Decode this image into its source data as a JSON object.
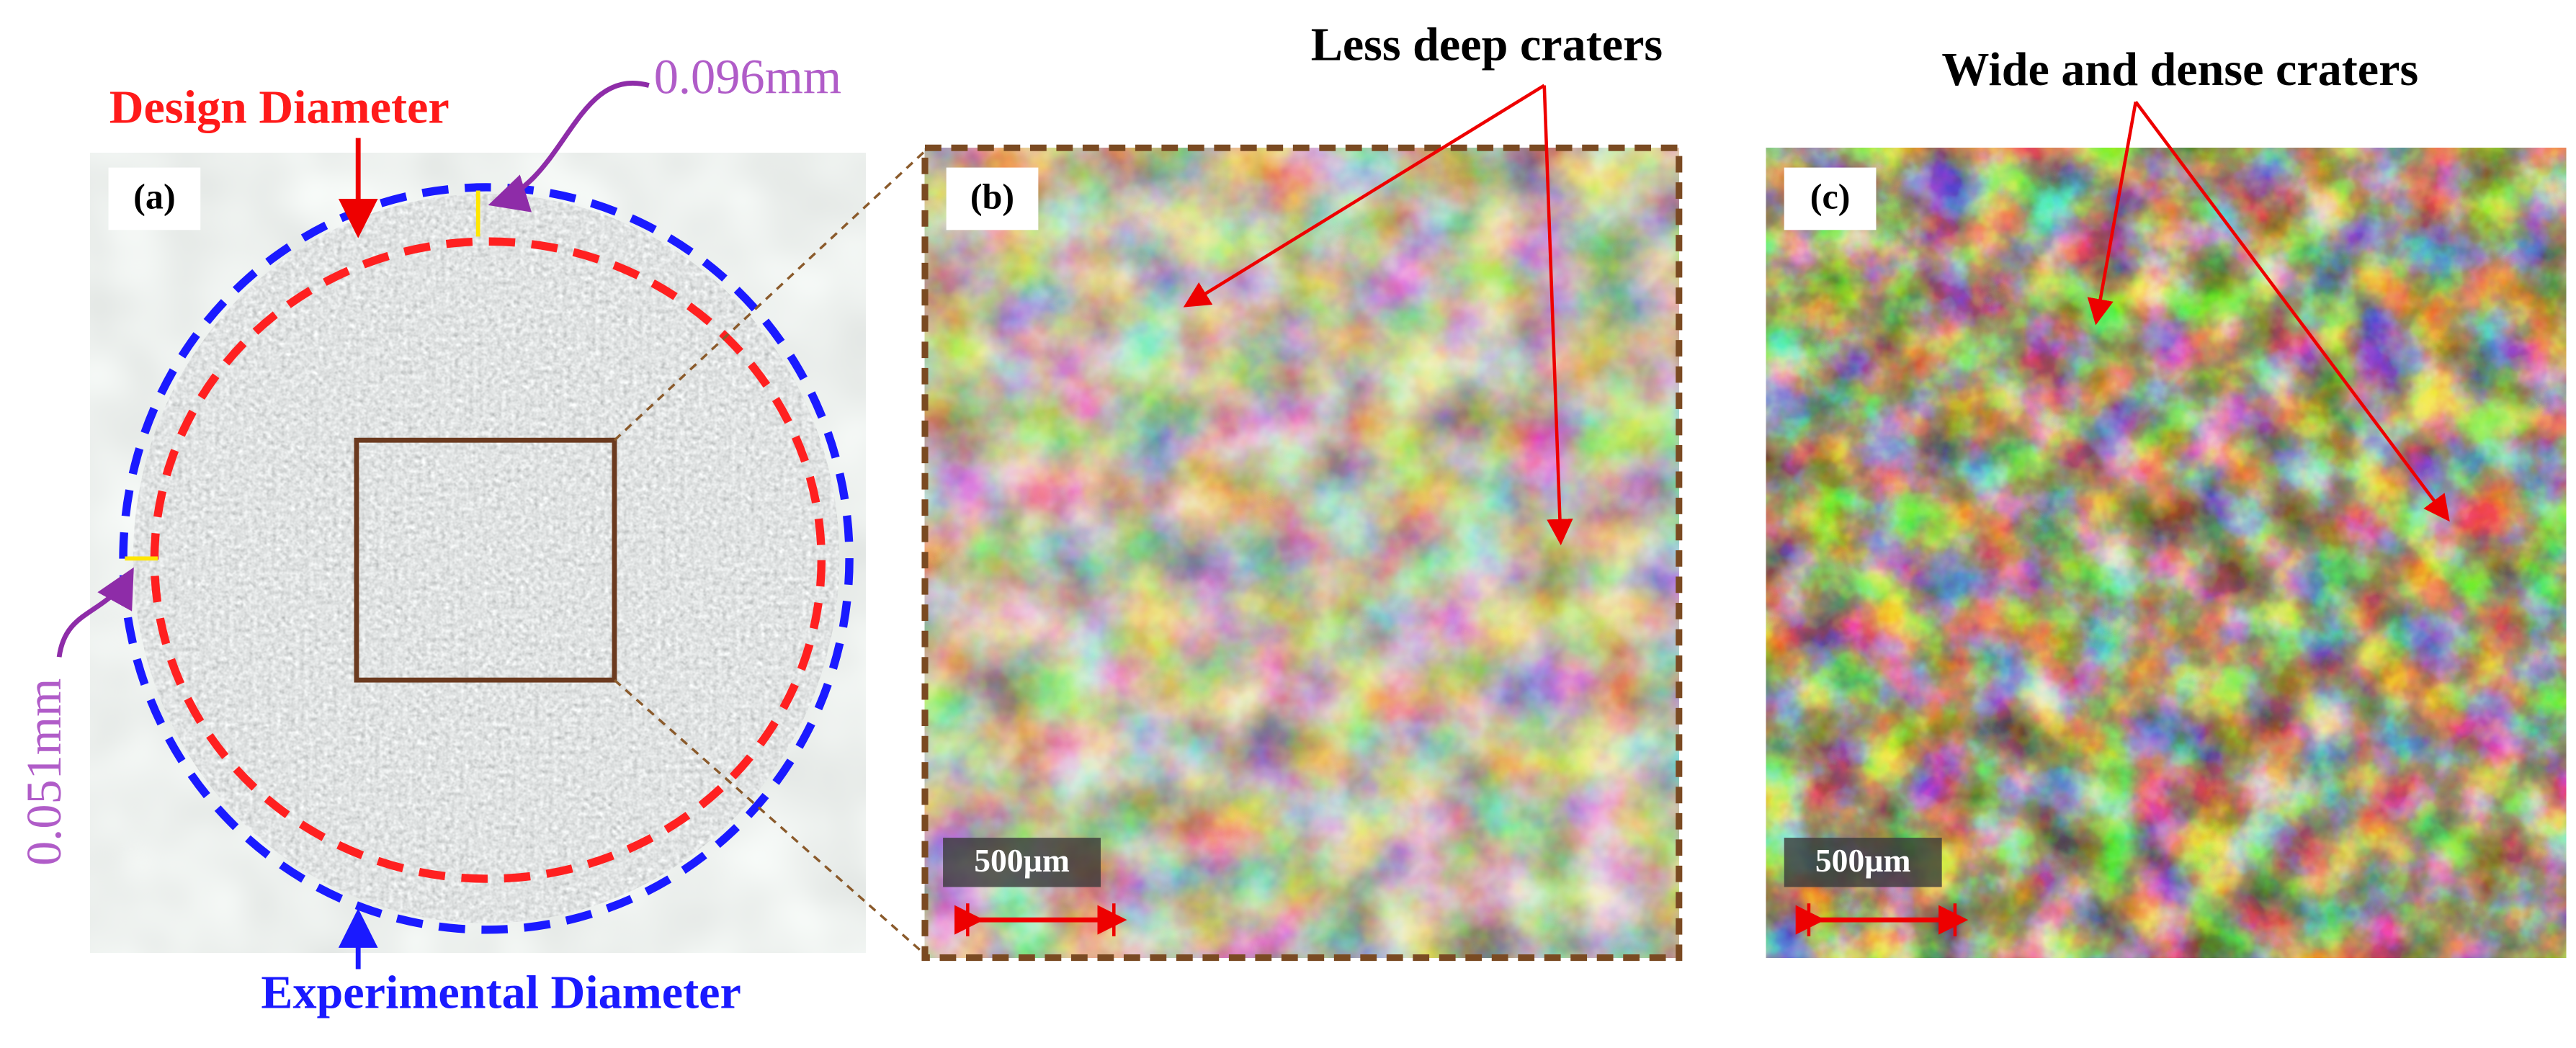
{
  "panel_a": {
    "label": "(a)",
    "design_diameter": "Design Diameter",
    "top_offset": "0.096mm",
    "side_offset": "0.051mm",
    "experimental_diameter": "Experimental Diameter"
  },
  "panel_b": {
    "label": "(b)",
    "annotation": "Less deep craters",
    "scale_bar": "500µm"
  },
  "panel_c": {
    "label": "(c)",
    "annotation": "Wide and dense craters",
    "scale_bar": "500µm"
  }
}
